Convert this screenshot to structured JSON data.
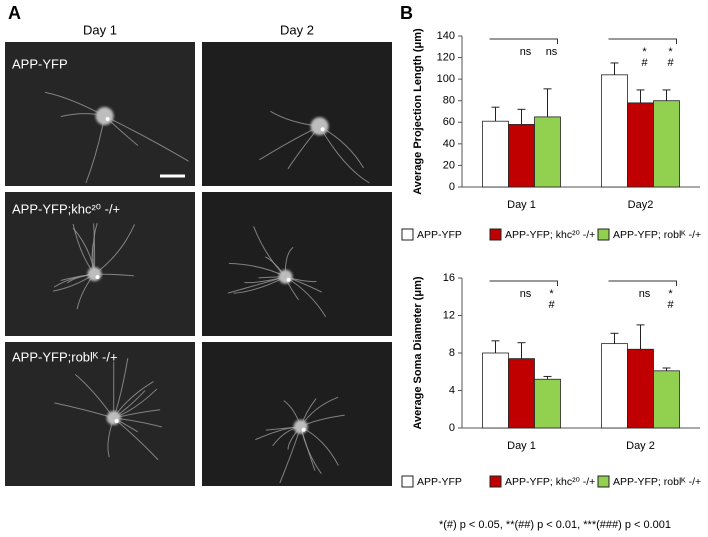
{
  "panel_a": {
    "label": "A",
    "columns": [
      "Day 1",
      "Day 2"
    ],
    "rows": [
      "APP-YFP",
      "APP-YFP;khc²⁰ -/+",
      "APP-YFP;roblᴷ -/+"
    ]
  },
  "panel_b": {
    "label": "B"
  },
  "chart_data": [
    {
      "type": "bar",
      "y_label": "Average Projection Length (μm)",
      "categories": [
        "Day 1",
        "Day2"
      ],
      "ylim": [
        0,
        140
      ],
      "yticks": [
        0,
        20,
        40,
        60,
        80,
        100,
        120,
        140
      ],
      "series": [
        {
          "name": "APP-YFP",
          "color": "#ffffff",
          "values": [
            61,
            104
          ],
          "errors": [
            13,
            11
          ]
        },
        {
          "name": "APP-YFP; khc²⁰ -/+",
          "color": "#c00000",
          "values": [
            58,
            78
          ],
          "errors": [
            14,
            12
          ],
          "annotations": [
            [
              "ns"
            ],
            [
              "*",
              "#"
            ]
          ]
        },
        {
          "name": "APP-YFP; roblᴷ -/+",
          "color": "#92d050",
          "values": [
            65,
            80
          ],
          "errors": [
            26,
            10
          ],
          "annotations": [
            [
              "ns"
            ],
            [
              "*",
              "#"
            ]
          ]
        }
      ]
    },
    {
      "type": "bar",
      "y_label": "Average Soma Diameter (μm)",
      "categories": [
        "Day 1",
        "Day 2"
      ],
      "ylim": [
        0,
        16
      ],
      "yticks": [
        0,
        4,
        8,
        12,
        16
      ],
      "series": [
        {
          "name": "APP-YFP",
          "color": "#ffffff",
          "values": [
            8.0,
            9.0
          ],
          "errors": [
            1.3,
            1.1
          ]
        },
        {
          "name": "APP-YFP; khc²⁰ -/+",
          "color": "#c00000",
          "values": [
            7.4,
            8.4
          ],
          "errors": [
            1.7,
            2.6
          ],
          "annotations": [
            [
              "ns"
            ],
            [
              "ns"
            ]
          ]
        },
        {
          "name": "APP-YFP; roblᴷ -/+",
          "color": "#92d050",
          "values": [
            5.2,
            6.1
          ],
          "errors": [
            0.3,
            0.3
          ],
          "annotations": [
            [
              "*",
              "#"
            ],
            [
              "*",
              "#"
            ]
          ]
        }
      ]
    }
  ],
  "footnote": "*(#) p < 0.05, **(##) p < 0.01, ***(###) p < 0.001"
}
